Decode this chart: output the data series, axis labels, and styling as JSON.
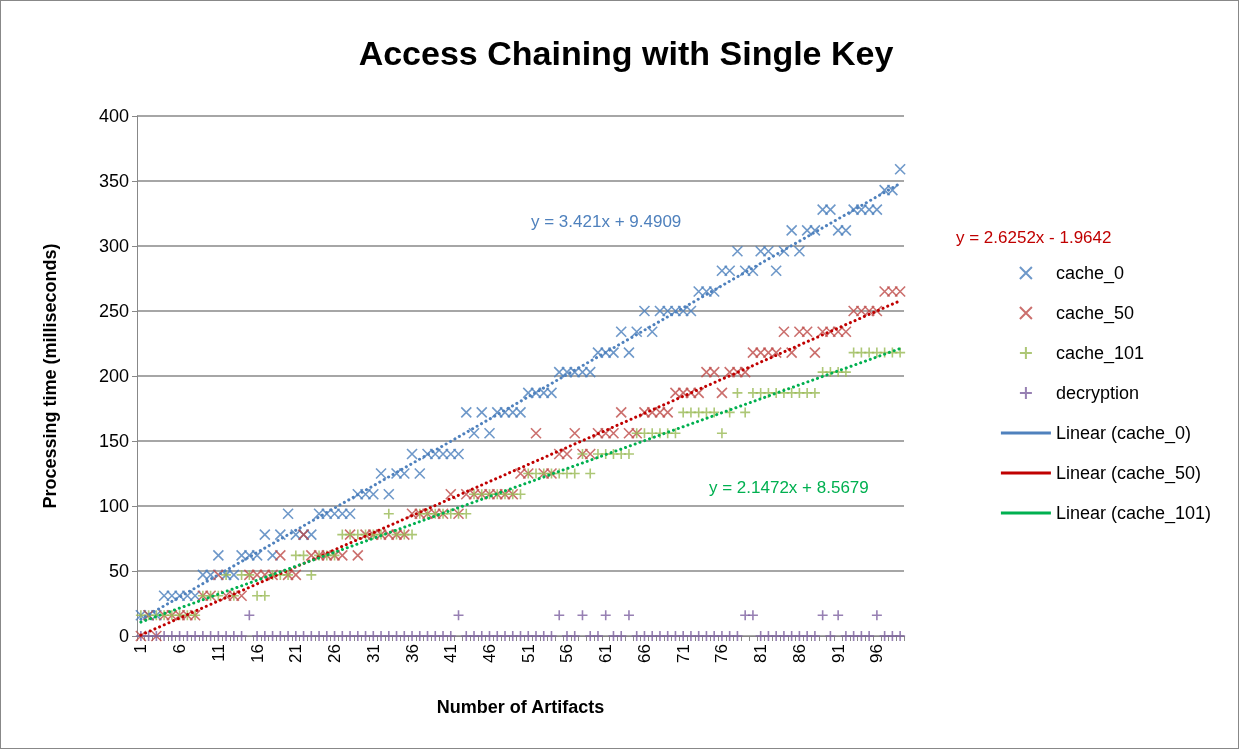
{
  "chart_data": {
    "type": "scatter",
    "title": "Access Chaining with Single Key",
    "xlabel": "Number of Artifacts",
    "ylabel": "Processing time (milliseconds)",
    "categories": [
      "1",
      null,
      null,
      null,
      null,
      "6",
      null,
      null,
      null,
      null,
      "11",
      null,
      null,
      null,
      null,
      "16",
      null,
      null,
      null,
      null,
      "21",
      null,
      null,
      null,
      null,
      "26",
      null,
      null,
      null,
      null,
      "31",
      null,
      null,
      null,
      null,
      "36",
      null,
      null,
      null,
      null,
      "41",
      null,
      null,
      null,
      null,
      "46",
      null,
      null,
      null,
      null,
      "51",
      null,
      null,
      null,
      null,
      "56",
      null,
      null,
      null,
      null,
      "61",
      null,
      null,
      null,
      null,
      "66",
      null,
      null,
      null,
      null,
      "71",
      null,
      null,
      null,
      null,
      "76",
      null,
      null,
      null,
      null,
      "81",
      null,
      null,
      null,
      null,
      "86",
      null,
      null,
      null,
      null,
      "91",
      null,
      null,
      null,
      null,
      "96",
      null,
      null,
      null
    ],
    "ylim": [
      0,
      400
    ],
    "yticks": [
      0,
      50,
      100,
      150,
      200,
      250,
      300,
      350,
      400
    ],
    "grid": "y",
    "legend": "right",
    "annotations": [
      "y = 3.421x + 9.4909",
      "y = 2.6252x - 1.9642",
      "y = 2.1472x + 8.5679"
    ],
    "series": [
      {
        "name": "cache_0",
        "type": "scatter",
        "marker": "cross",
        "color": "#4a7ebb",
        "values": [
          16,
          16,
          16,
          31,
          31,
          31,
          31,
          31,
          47,
          47,
          62,
          47,
          47,
          62,
          62,
          62,
          78,
          62,
          78,
          94,
          78,
          78,
          78,
          94,
          94,
          94,
          94,
          94,
          109,
          109,
          109,
          125,
          109,
          125,
          125,
          140,
          125,
          140,
          140,
          140,
          140,
          140,
          172,
          156,
          172,
          156,
          172,
          172,
          172,
          172,
          187,
          187,
          187,
          187,
          203,
          203,
          203,
          203,
          203,
          218,
          218,
          218,
          234,
          218,
          234,
          250,
          234,
          250,
          250,
          250,
          250,
          250,
          265,
          265,
          265,
          281,
          281,
          296,
          281,
          281,
          296,
          296,
          281,
          296,
          312,
          296,
          312,
          312,
          328,
          328,
          312,
          312,
          328,
          328,
          328,
          328,
          343,
          343,
          359
        ]
      },
      {
        "name": "cache_50",
        "type": "scatter",
        "marker": "cross",
        "color": "#be4b48",
        "values": [
          0,
          16,
          0,
          16,
          16,
          16,
          16,
          16,
          31,
          31,
          47,
          31,
          31,
          31,
          47,
          47,
          47,
          47,
          62,
          47,
          47,
          78,
          62,
          62,
          62,
          62,
          62,
          78,
          62,
          78,
          78,
          78,
          78,
          78,
          78,
          94,
          94,
          94,
          94,
          94,
          109,
          94,
          109,
          109,
          109,
          109,
          109,
          109,
          109,
          125,
          125,
          156,
          125,
          125,
          140,
          140,
          156,
          140,
          140,
          156,
          156,
          156,
          172,
          156,
          156,
          172,
          172,
          172,
          172,
          187,
          187,
          187,
          187,
          203,
          203,
          187,
          203,
          203,
          203,
          218,
          218,
          218,
          218,
          234,
          218,
          234,
          234,
          218,
          234,
          234,
          234,
          234,
          250,
          250,
          250,
          250,
          265,
          265,
          265
        ]
      },
      {
        "name": "cache_101",
        "type": "scatter",
        "marker": "plus",
        "color": "#98b954",
        "values": [
          16,
          16,
          16,
          16,
          16,
          16,
          16,
          16,
          31,
          31,
          31,
          47,
          31,
          47,
          47,
          31,
          31,
          47,
          47,
          47,
          62,
          62,
          47,
          62,
          62,
          62,
          78,
          78,
          78,
          78,
          78,
          78,
          94,
          78,
          78,
          78,
          94,
          94,
          94,
          94,
          94,
          94,
          94,
          109,
          109,
          109,
          109,
          109,
          109,
          109,
          125,
          125,
          125,
          125,
          125,
          125,
          125,
          140,
          125,
          140,
          140,
          140,
          140,
          140,
          156,
          156,
          156,
          156,
          156,
          156,
          172,
          172,
          172,
          172,
          172,
          156,
          172,
          187,
          172,
          187,
          187,
          187,
          187,
          187,
          187,
          187,
          187,
          187,
          203,
          203,
          203,
          203,
          218,
          218,
          218,
          218,
          218,
          218,
          218
        ]
      },
      {
        "name": "decryption",
        "type": "scatter",
        "marker": "plus",
        "color": "#7d60a0",
        "values": [
          0,
          0,
          0,
          0,
          0,
          0,
          0,
          0,
          0,
          0,
          0,
          0,
          0,
          0,
          16,
          0,
          0,
          0,
          0,
          0,
          0,
          0,
          0,
          0,
          0,
          0,
          0,
          0,
          0,
          0,
          0,
          0,
          0,
          0,
          0,
          0,
          0,
          0,
          0,
          0,
          0,
          16,
          0,
          0,
          0,
          0,
          0,
          0,
          0,
          0,
          0,
          0,
          0,
          0,
          16,
          0,
          0,
          16,
          0,
          0,
          16,
          0,
          0,
          16,
          0,
          0,
          0,
          0,
          0,
          0,
          0,
          0,
          0,
          0,
          0,
          0,
          0,
          0,
          16,
          16,
          0,
          0,
          0,
          0,
          0,
          0,
          0,
          0,
          16,
          0,
          16,
          0,
          0,
          0,
          0,
          16,
          0,
          0,
          0
        ]
      },
      {
        "name": "Linear (cache_0)",
        "type": "line",
        "marker": "none",
        "line_style": "dotted",
        "color": "#4f81bd",
        "values": [
          12.9,
          null,
          null,
          null,
          null,
          null,
          null,
          null,
          null,
          null,
          null,
          null,
          null,
          null,
          null,
          null,
          null,
          null,
          null,
          null,
          null,
          null,
          null,
          null,
          null,
          null,
          null,
          null,
          null,
          null,
          null,
          null,
          null,
          null,
          null,
          null,
          null,
          null,
          null,
          null,
          null,
          null,
          null,
          null,
          null,
          null,
          null,
          null,
          null,
          null,
          null,
          null,
          null,
          null,
          null,
          null,
          null,
          null,
          null,
          null,
          null,
          null,
          null,
          null,
          null,
          null,
          null,
          null,
          null,
          null,
          null,
          null,
          null,
          null,
          null,
          null,
          null,
          null,
          null,
          null,
          null,
          null,
          null,
          null,
          null,
          null,
          null,
          null,
          null,
          null,
          null,
          null,
          null,
          null,
          null,
          null,
          null,
          null,
          348.2
        ]
      },
      {
        "name": "Linear (cache_50)",
        "type": "line",
        "marker": "none",
        "line_style": "dotted",
        "color": "#c00000",
        "values": [
          0.7,
          null,
          null,
          null,
          null,
          null,
          null,
          null,
          null,
          null,
          null,
          null,
          null,
          null,
          null,
          null,
          null,
          null,
          null,
          null,
          null,
          null,
          null,
          null,
          null,
          null,
          null,
          null,
          null,
          null,
          null,
          null,
          null,
          null,
          null,
          null,
          null,
          null,
          null,
          null,
          null,
          null,
          null,
          null,
          null,
          null,
          null,
          null,
          null,
          null,
          null,
          null,
          null,
          null,
          null,
          null,
          null,
          null,
          null,
          null,
          null,
          null,
          null,
          null,
          null,
          null,
          null,
          null,
          null,
          null,
          null,
          null,
          null,
          null,
          null,
          null,
          null,
          null,
          null,
          null,
          null,
          null,
          null,
          null,
          null,
          null,
          null,
          null,
          null,
          null,
          null,
          null,
          null,
          null,
          null,
          null,
          null,
          null,
          257.9
        ]
      },
      {
        "name": "Linear (cache_101)",
        "type": "line",
        "marker": "none",
        "line_style": "dotted",
        "color": "#00b050",
        "values": [
          10.7,
          null,
          null,
          null,
          null,
          null,
          null,
          null,
          null,
          null,
          null,
          null,
          null,
          null,
          null,
          null,
          null,
          null,
          null,
          null,
          null,
          null,
          null,
          null,
          null,
          null,
          null,
          null,
          null,
          null,
          null,
          null,
          null,
          null,
          null,
          null,
          null,
          null,
          null,
          null,
          null,
          null,
          null,
          null,
          null,
          null,
          null,
          null,
          null,
          null,
          null,
          null,
          null,
          null,
          null,
          null,
          null,
          null,
          null,
          null,
          null,
          null,
          null,
          null,
          null,
          null,
          null,
          null,
          null,
          null,
          null,
          null,
          null,
          null,
          null,
          null,
          null,
          null,
          null,
          null,
          null,
          null,
          null,
          null,
          null,
          null,
          null,
          null,
          null,
          null,
          null,
          null,
          null,
          null,
          null,
          null,
          null,
          null,
          221.1
        ]
      }
    ]
  }
}
